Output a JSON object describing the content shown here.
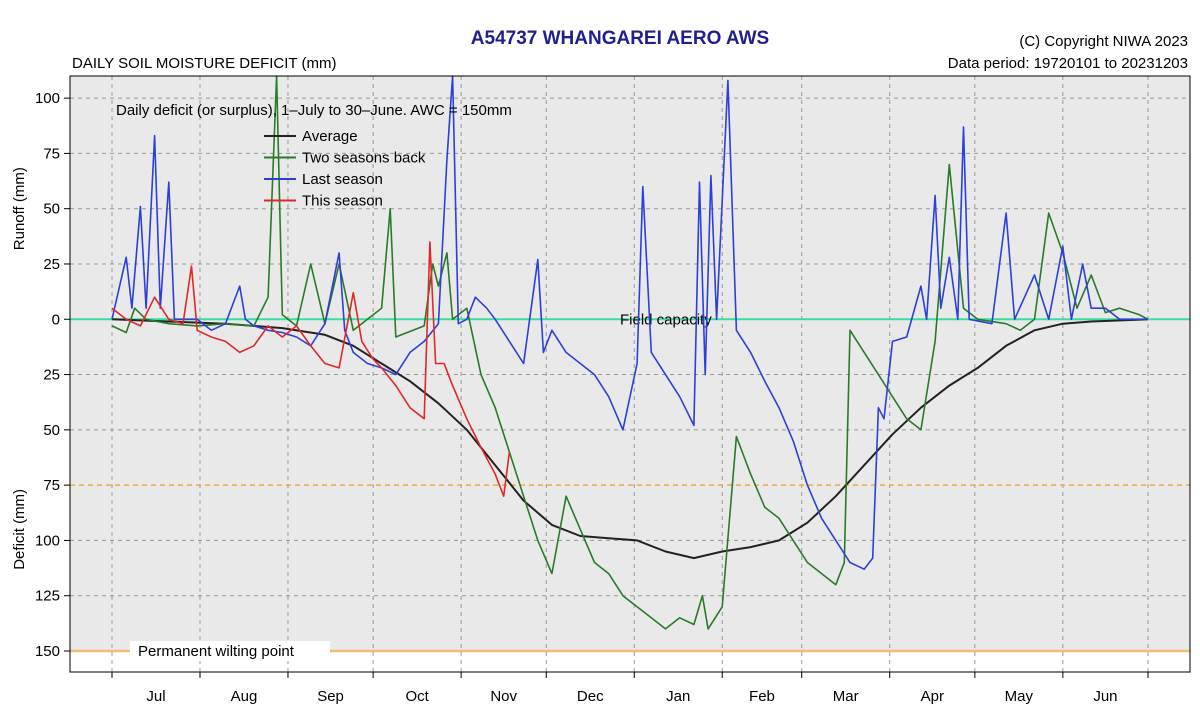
{
  "header": {
    "title": "A54737  WHANGAREI AERO AWS",
    "copyright": "(C) Copyright NIWA  2023",
    "period": "Data period:  19720101  to  20231203",
    "subtitle": "DAILY SOIL MOISTURE DEFICIT (mm)"
  },
  "chart_data": {
    "type": "line",
    "title": "A54737  WHANGAREI AERO AWS",
    "subtitle": "DAILY SOIL MOISTURE DEFICIT (mm)",
    "annotation": "Daily deficit (or surplus), 1–July to 30–June.  AWC = 150mm",
    "y_upper_label": "Runoff (mm)",
    "y_lower_label": "Deficit (mm)",
    "ylim": [
      150,
      -110
    ],
    "x_range_days": [
      0,
      365
    ],
    "y_ticks": [
      {
        "v": -100,
        "label": "100"
      },
      {
        "v": -75,
        "label": "75"
      },
      {
        "v": -50,
        "label": "50"
      },
      {
        "v": -25,
        "label": "25"
      },
      {
        "v": 0,
        "label": "0"
      },
      {
        "v": 25,
        "label": "25"
      },
      {
        "v": 50,
        "label": "50"
      },
      {
        "v": 75,
        "label": "75"
      },
      {
        "v": 100,
        "label": "100"
      },
      {
        "v": 125,
        "label": "125"
      },
      {
        "v": 150,
        "label": "150"
      }
    ],
    "months": [
      "Jul",
      "Aug",
      "Sep",
      "Oct",
      "Nov",
      "Dec",
      "Jan",
      "Feb",
      "Mar",
      "Apr",
      "May",
      "Jun"
    ],
    "month_starts": [
      0,
      31,
      62,
      92,
      123,
      153,
      184,
      215,
      243,
      274,
      304,
      335,
      365
    ],
    "reference_lines": [
      {
        "name": "Field capacity",
        "value": 0,
        "color": "#38e0a0"
      },
      {
        "name": "",
        "value": 75,
        "color": "#e8b040"
      },
      {
        "name": "Permanent wilting point",
        "value": 150,
        "color": "#f0c070"
      }
    ],
    "legend_position": "top-left",
    "grid": true,
    "series": [
      {
        "name": "Average",
        "color": "#222222",
        "points": [
          [
            0,
            0
          ],
          [
            20,
            1
          ],
          [
            40,
            2
          ],
          [
            60,
            4
          ],
          [
            75,
            7
          ],
          [
            85,
            12
          ],
          [
            95,
            20
          ],
          [
            105,
            28
          ],
          [
            115,
            38
          ],
          [
            125,
            50
          ],
          [
            135,
            66
          ],
          [
            145,
            82
          ],
          [
            155,
            93
          ],
          [
            165,
            98
          ],
          [
            175,
            99
          ],
          [
            185,
            100
          ],
          [
            195,
            105
          ],
          [
            205,
            108
          ],
          [
            215,
            105
          ],
          [
            225,
            103
          ],
          [
            235,
            100
          ],
          [
            245,
            92
          ],
          [
            255,
            80
          ],
          [
            265,
            66
          ],
          [
            275,
            52
          ],
          [
            285,
            40
          ],
          [
            295,
            30
          ],
          [
            305,
            22
          ],
          [
            315,
            12
          ],
          [
            325,
            5
          ],
          [
            335,
            2
          ],
          [
            345,
            1
          ],
          [
            365,
            0
          ]
        ]
      },
      {
        "name": "Two seasons back",
        "color": "#2a7a2a",
        "points": [
          [
            0,
            3
          ],
          [
            5,
            6
          ],
          [
            8,
            -5
          ],
          [
            12,
            0
          ],
          [
            20,
            2
          ],
          [
            30,
            3
          ],
          [
            40,
            2
          ],
          [
            50,
            3
          ],
          [
            55,
            -10
          ],
          [
            58,
            -110
          ],
          [
            60,
            -2
          ],
          [
            65,
            3
          ],
          [
            70,
            -25
          ],
          [
            75,
            2
          ],
          [
            80,
            -25
          ],
          [
            85,
            5
          ],
          [
            95,
            -5
          ],
          [
            98,
            -50
          ],
          [
            100,
            8
          ],
          [
            110,
            3
          ],
          [
            113,
            -25
          ],
          [
            115,
            -15
          ],
          [
            118,
            -30
          ],
          [
            120,
            0
          ],
          [
            125,
            -5
          ],
          [
            130,
            25
          ],
          [
            135,
            40
          ],
          [
            140,
            60
          ],
          [
            145,
            80
          ],
          [
            150,
            100
          ],
          [
            155,
            115
          ],
          [
            160,
            80
          ],
          [
            165,
            95
          ],
          [
            170,
            110
          ],
          [
            175,
            115
          ],
          [
            180,
            125
          ],
          [
            185,
            130
          ],
          [
            190,
            135
          ],
          [
            195,
            140
          ],
          [
            200,
            135
          ],
          [
            205,
            138
          ],
          [
            208,
            125
          ],
          [
            210,
            140
          ],
          [
            215,
            130
          ],
          [
            220,
            53
          ],
          [
            225,
            70
          ],
          [
            230,
            85
          ],
          [
            235,
            90
          ],
          [
            240,
            100
          ],
          [
            245,
            110
          ],
          [
            250,
            115
          ],
          [
            255,
            120
          ],
          [
            258,
            110
          ],
          [
            260,
            5
          ],
          [
            265,
            15
          ],
          [
            270,
            25
          ],
          [
            275,
            35
          ],
          [
            280,
            45
          ],
          [
            285,
            50
          ],
          [
            290,
            10
          ],
          [
            295,
            -70
          ],
          [
            300,
            -5
          ],
          [
            305,
            0
          ],
          [
            315,
            2
          ],
          [
            320,
            5
          ],
          [
            325,
            0
          ],
          [
            330,
            -48
          ],
          [
            335,
            -30
          ],
          [
            340,
            -5
          ],
          [
            345,
            -20
          ],
          [
            350,
            -3
          ],
          [
            355,
            -5
          ],
          [
            362,
            -2
          ],
          [
            365,
            0
          ]
        ]
      },
      {
        "name": "Last season",
        "color": "#2d3fd8",
        "points": [
          [
            0,
            0
          ],
          [
            5,
            -28
          ],
          [
            7,
            -5
          ],
          [
            10,
            -51
          ],
          [
            12,
            -5
          ],
          [
            15,
            -83
          ],
          [
            17,
            -5
          ],
          [
            20,
            -62
          ],
          [
            22,
            0
          ],
          [
            30,
            0
          ],
          [
            35,
            5
          ],
          [
            40,
            2
          ],
          [
            45,
            -15
          ],
          [
            47,
            0
          ],
          [
            50,
            3
          ],
          [
            55,
            5
          ],
          [
            60,
            6
          ],
          [
            65,
            8
          ],
          [
            70,
            12
          ],
          [
            75,
            2
          ],
          [
            80,
            -30
          ],
          [
            82,
            5
          ],
          [
            85,
            15
          ],
          [
            90,
            20
          ],
          [
            95,
            22
          ],
          [
            100,
            25
          ],
          [
            105,
            15
          ],
          [
            110,
            10
          ],
          [
            115,
            2
          ],
          [
            118,
            -72
          ],
          [
            120,
            -110
          ],
          [
            122,
            2
          ],
          [
            125,
            0
          ],
          [
            128,
            -10
          ],
          [
            132,
            -5
          ],
          [
            135,
            0
          ],
          [
            140,
            10
          ],
          [
            145,
            20
          ],
          [
            150,
            -27
          ],
          [
            152,
            15
          ],
          [
            155,
            5
          ],
          [
            160,
            15
          ],
          [
            165,
            20
          ],
          [
            170,
            25
          ],
          [
            175,
            35
          ],
          [
            180,
            50
          ],
          [
            185,
            20
          ],
          [
            187,
            -60
          ],
          [
            190,
            15
          ],
          [
            195,
            25
          ],
          [
            200,
            35
          ],
          [
            205,
            48
          ],
          [
            207,
            -62
          ],
          [
            209,
            25
          ],
          [
            211,
            -65
          ],
          [
            213,
            0
          ],
          [
            217,
            -108
          ],
          [
            220,
            5
          ],
          [
            225,
            15
          ],
          [
            230,
            28
          ],
          [
            235,
            40
          ],
          [
            240,
            55
          ],
          [
            245,
            75
          ],
          [
            250,
            90
          ],
          [
            255,
            100
          ],
          [
            260,
            110
          ],
          [
            265,
            113
          ],
          [
            268,
            108
          ],
          [
            270,
            40
          ],
          [
            272,
            45
          ],
          [
            275,
            10
          ],
          [
            280,
            8
          ],
          [
            285,
            -15
          ],
          [
            287,
            0
          ],
          [
            290,
            -56
          ],
          [
            292,
            -5
          ],
          [
            295,
            -28
          ],
          [
            298,
            0
          ],
          [
            300,
            -87
          ],
          [
            302,
            0
          ],
          [
            310,
            2
          ],
          [
            315,
            -48
          ],
          [
            318,
            0
          ],
          [
            325,
            -20
          ],
          [
            330,
            0
          ],
          [
            335,
            -33
          ],
          [
            338,
            0
          ],
          [
            342,
            -25
          ],
          [
            345,
            -5
          ],
          [
            350,
            -5
          ],
          [
            355,
            0
          ],
          [
            365,
            0
          ]
        ]
      },
      {
        "name": "This season",
        "color": "#e02828",
        "points": [
          [
            0,
            -5
          ],
          [
            5,
            0
          ],
          [
            10,
            3
          ],
          [
            15,
            -10
          ],
          [
            20,
            0
          ],
          [
            25,
            2
          ],
          [
            28,
            -24
          ],
          [
            30,
            5
          ],
          [
            35,
            8
          ],
          [
            40,
            10
          ],
          [
            45,
            15
          ],
          [
            50,
            12
          ],
          [
            55,
            3
          ],
          [
            60,
            8
          ],
          [
            65,
            3
          ],
          [
            70,
            12
          ],
          [
            75,
            20
          ],
          [
            80,
            22
          ],
          [
            85,
            -12
          ],
          [
            88,
            10
          ],
          [
            92,
            18
          ],
          [
            95,
            22
          ],
          [
            100,
            30
          ],
          [
            105,
            40
          ],
          [
            110,
            45
          ],
          [
            112,
            -35
          ],
          [
            114,
            20
          ],
          [
            117,
            20
          ],
          [
            120,
            30
          ],
          [
            125,
            45
          ],
          [
            130,
            58
          ],
          [
            135,
            70
          ],
          [
            138,
            80
          ],
          [
            140,
            60
          ]
        ]
      }
    ]
  }
}
